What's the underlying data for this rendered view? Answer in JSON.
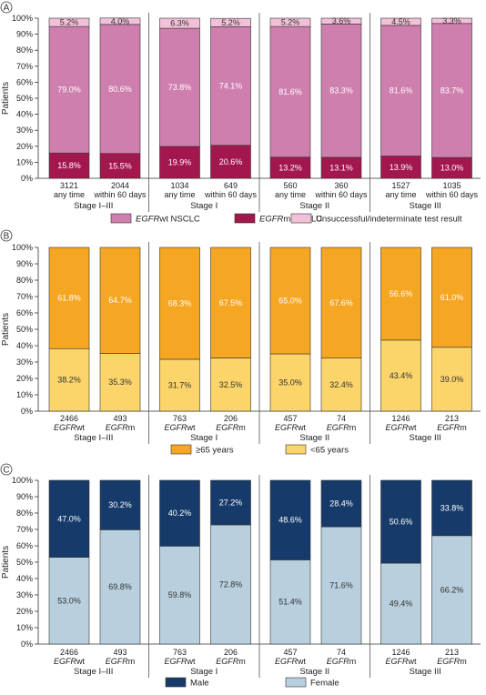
{
  "y_axis_label": "Patients",
  "y_ticks": [
    "0%",
    "10%",
    "20%",
    "30%",
    "40%",
    "50%",
    "60%",
    "70%",
    "80%",
    "90%",
    "100%"
  ],
  "chart_data": [
    {
      "type": "bar",
      "stacked": true,
      "panel_label": "A",
      "ylabel": "Patients",
      "ylim": [
        0,
        100
      ],
      "y_unit": "%",
      "groups": [
        "Stage I–III",
        "Stage I",
        "Stage II",
        "Stage III"
      ],
      "bars": [
        {
          "group": 0,
          "line1": "3121",
          "line2": "any time",
          "line2_italic_prefix": ""
        },
        {
          "group": 0,
          "line1": "2044",
          "line2": "within 60 days",
          "line2_italic_prefix": ""
        },
        {
          "group": 1,
          "line1": "1034",
          "line2": "any time",
          "line2_italic_prefix": ""
        },
        {
          "group": 1,
          "line1": "649",
          "line2": "within 60 days",
          "line2_italic_prefix": ""
        },
        {
          "group": 2,
          "line1": "560",
          "line2": "any time",
          "line2_italic_prefix": ""
        },
        {
          "group": 2,
          "line1": "360",
          "line2": "within 60 days",
          "line2_italic_prefix": ""
        },
        {
          "group": 3,
          "line1": "1527",
          "line2": "any time",
          "line2_italic_prefix": ""
        },
        {
          "group": 3,
          "line1": "1035",
          "line2": "within 60 days",
          "line2_italic_prefix": ""
        }
      ],
      "series": [
        {
          "legend_italic": "EGFR",
          "legend_rest": "m NSCLC",
          "color": "#a3174f",
          "label_color": "#ffffff",
          "values": [
            15.8,
            15.5,
            19.9,
            20.6,
            13.2,
            13.1,
            13.9,
            13.0
          ],
          "labels": [
            "15.8%",
            "15.5%",
            "19.9%",
            "20.6%",
            "13.2%",
            "13.1%",
            "13.9%",
            "13.0%"
          ]
        },
        {
          "legend_italic": "EGFR",
          "legend_rest": "wt NSCLC",
          "color": "#cf7fae",
          "label_color": "#ffffff",
          "values": [
            79.0,
            80.6,
            73.8,
            74.1,
            81.6,
            83.3,
            81.6,
            83.7
          ],
          "labels": [
            "79.0%",
            "80.6%",
            "73.8%",
            "74.1%",
            "81.6%",
            "83.3%",
            "81.6%",
            "83.7%"
          ]
        },
        {
          "legend_italic": "",
          "legend_rest": "Unsuccessful/indeterminate test result",
          "color": "#f2c0d8",
          "label_color": "#333333",
          "values": [
            5.2,
            4.0,
            6.3,
            5.2,
            5.2,
            3.6,
            4.5,
            3.3
          ],
          "labels": [
            "5.2%",
            "4.0%",
            "6.3%",
            "5.2%",
            "5.2%",
            "3.6%",
            "4.5%",
            "3.3%"
          ]
        }
      ],
      "legend_order": [
        1,
        0,
        2
      ]
    },
    {
      "type": "bar",
      "stacked": true,
      "panel_label": "B",
      "ylabel": "Patients",
      "ylim": [
        0,
        100
      ],
      "y_unit": "%",
      "groups": [
        "Stage I–III",
        "Stage I",
        "Stage II",
        "Stage III"
      ],
      "bars": [
        {
          "group": 0,
          "line1": "2466",
          "line2": "wt",
          "line2_italic_prefix": "EGFR"
        },
        {
          "group": 0,
          "line1": "493",
          "line2": "m",
          "line2_italic_prefix": "EGFR"
        },
        {
          "group": 1,
          "line1": "763",
          "line2": "wt",
          "line2_italic_prefix": "EGFR"
        },
        {
          "group": 1,
          "line1": "206",
          "line2": "m",
          "line2_italic_prefix": "EGFR"
        },
        {
          "group": 2,
          "line1": "457",
          "line2": "wt",
          "line2_italic_prefix": "EGFR"
        },
        {
          "group": 2,
          "line1": "74",
          "line2": "m",
          "line2_italic_prefix": "EGFR"
        },
        {
          "group": 3,
          "line1": "1246",
          "line2": "wt",
          "line2_italic_prefix": "EGFR"
        },
        {
          "group": 3,
          "line1": "213",
          "line2": "m",
          "line2_italic_prefix": "EGFR"
        }
      ],
      "series": [
        {
          "legend_italic": "",
          "legend_rest": "<65 years",
          "color": "#fbd46a",
          "label_color": "#333333",
          "values": [
            38.2,
            35.3,
            31.7,
            32.5,
            35.0,
            32.4,
            43.4,
            39.0
          ],
          "labels": [
            "38.2%",
            "35.3%",
            "31.7%",
            "32.5%",
            "35.0%",
            "32.4%",
            "43.4%",
            "39.0%"
          ]
        },
        {
          "legend_italic": "",
          "legend_rest": "≥65 years",
          "color": "#f5a623",
          "label_color": "#ffffff",
          "values": [
            61.8,
            64.7,
            68.3,
            67.5,
            65.0,
            67.6,
            56.6,
            61.0
          ],
          "labels": [
            "61.8%",
            "64.7%",
            "68.3%",
            "67.5%",
            "65.0%",
            "67.6%",
            "56.6%",
            "61.0%"
          ]
        }
      ],
      "legend_order": [
        1,
        0
      ]
    },
    {
      "type": "bar",
      "stacked": true,
      "panel_label": "C",
      "ylabel": "Patients",
      "ylim": [
        0,
        100
      ],
      "y_unit": "%",
      "groups": [
        "Stage I–III",
        "Stage I",
        "Stage II",
        "Stage III"
      ],
      "bars": [
        {
          "group": 0,
          "line1": "2466",
          "line2": "wt",
          "line2_italic_prefix": "EGFR"
        },
        {
          "group": 0,
          "line1": "493",
          "line2": "m",
          "line2_italic_prefix": "EGFR"
        },
        {
          "group": 1,
          "line1": "763",
          "line2": "wt",
          "line2_italic_prefix": "EGFR"
        },
        {
          "group": 1,
          "line1": "206",
          "line2": "m",
          "line2_italic_prefix": "EGFR"
        },
        {
          "group": 2,
          "line1": "457",
          "line2": "wt",
          "line2_italic_prefix": "EGFR"
        },
        {
          "group": 2,
          "line1": "74",
          "line2": "m",
          "line2_italic_prefix": "EGFR"
        },
        {
          "group": 3,
          "line1": "1246",
          "line2": "wt",
          "line2_italic_prefix": "EGFR"
        },
        {
          "group": 3,
          "line1": "213",
          "line2": "m",
          "line2_italic_prefix": "EGFR"
        }
      ],
      "series": [
        {
          "legend_italic": "",
          "legend_rest": "Female",
          "color": "#b8cfde",
          "label_color": "#333333",
          "values": [
            53.0,
            69.8,
            59.8,
            72.8,
            51.4,
            71.6,
            49.4,
            66.2
          ],
          "labels": [
            "53.0%",
            "69.8%",
            "59.8%",
            "72.8%",
            "51.4%",
            "71.6%",
            "49.4%",
            "66.2%"
          ]
        },
        {
          "legend_italic": "",
          "legend_rest": "Male",
          "color": "#163a6a",
          "label_color": "#ffffff",
          "values": [
            47.0,
            30.2,
            40.2,
            27.2,
            48.6,
            28.4,
            50.6,
            33.8
          ],
          "labels": [
            "47.0%",
            "30.2%",
            "40.2%",
            "27.2%",
            "48.6%",
            "28.4%",
            "50.6%",
            "33.8%"
          ]
        }
      ],
      "legend_order": [
        1,
        0
      ]
    }
  ]
}
